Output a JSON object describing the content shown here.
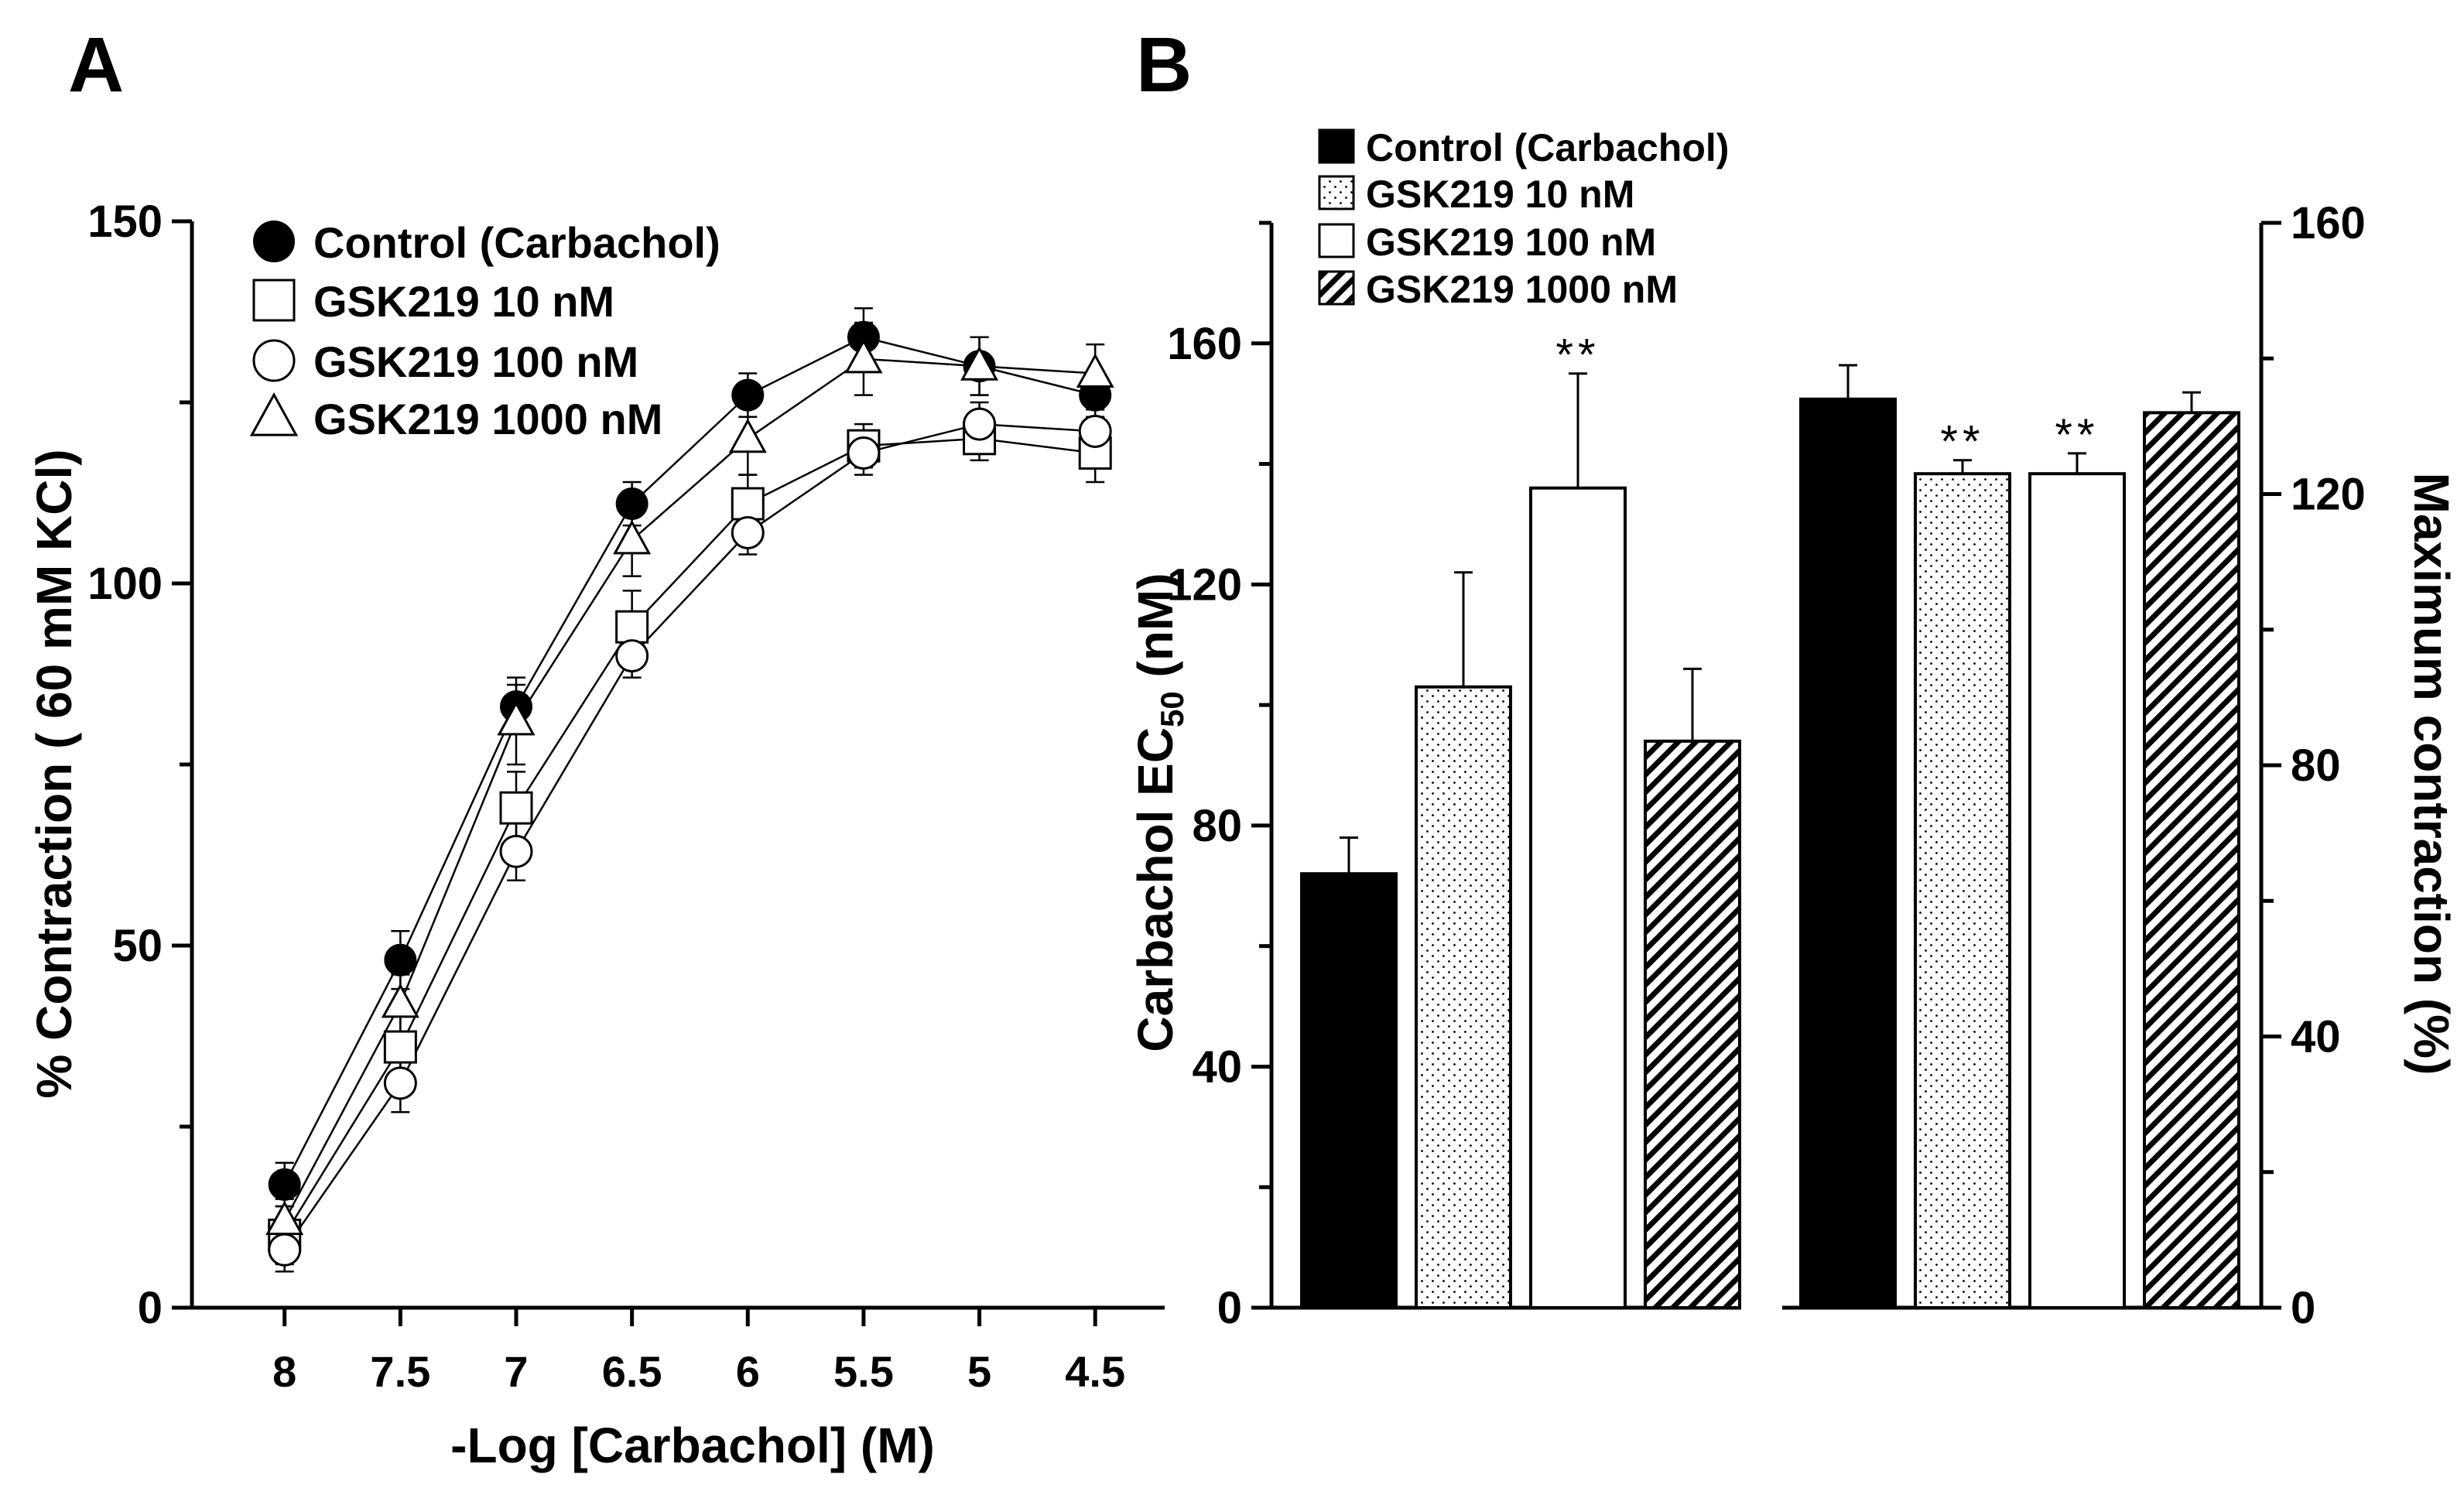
{
  "chart_data": [
    {
      "panel": "A",
      "type": "line",
      "xlabel": "-Log [Carbachol] (M)",
      "ylabel": "% Contraction ( 60 mM KCl)",
      "xlim": [
        8.4,
        4.2
      ],
      "ylim": [
        0,
        150
      ],
      "x": [
        8,
        7.5,
        7,
        6.5,
        6,
        5.5,
        5,
        4.5
      ],
      "x_tick_labels": [
        "8",
        "7.5",
        "7",
        "6.5",
        "6",
        "5.5",
        "5",
        "4.5"
      ],
      "y_ticks": [
        0,
        50,
        100,
        150
      ],
      "series": [
        {
          "name": "Control (Carbachol)",
          "marker": "filled-circle",
          "values": [
            17,
            48,
            83,
            111,
            126,
            134,
            130,
            126
          ],
          "errors": [
            3,
            4,
            3,
            3,
            3,
            4,
            4,
            3
          ]
        },
        {
          "name": "GSK219 10 nM",
          "marker": "open-square",
          "values": [
            10,
            36,
            69,
            94,
            111,
            119,
            120,
            118
          ],
          "errors": [
            4,
            5,
            5,
            5,
            4,
            3,
            3,
            4
          ]
        },
        {
          "name": "GSK219 100 nM",
          "marker": "open-circle",
          "values": [
            8,
            31,
            63,
            90,
            107,
            118,
            122,
            121
          ],
          "errors": [
            3,
            4,
            4,
            3,
            3,
            3,
            3,
            3
          ]
        },
        {
          "name": "GSK219 1000 nM",
          "marker": "open-triangle",
          "values": [
            12,
            42,
            81,
            106,
            120,
            131,
            130,
            129
          ],
          "errors": [
            3,
            4,
            6,
            5,
            5,
            5,
            4,
            4
          ]
        }
      ]
    },
    {
      "panel": "B",
      "type": "bar",
      "legend": [
        "Control (Carbachol)",
        "GSK219 10 nM",
        "GSK219 100 nM",
        "GSK219 1000 nM"
      ],
      "left": {
        "ylabel": "Carbachol EC",
        "ylabel_sub": "50",
        "ylabel_suffix": " (nM)",
        "ylim": [
          0,
          180
        ],
        "y_ticks": [
          0,
          40,
          80,
          120,
          160
        ],
        "values": [
          72,
          103,
          136,
          94
        ],
        "errors": [
          6,
          19,
          19,
          12
        ],
        "significance": [
          "",
          "",
          "**",
          ""
        ]
      },
      "right": {
        "ylabel": "Maximum contraction (%)",
        "ylim": [
          0,
          160
        ],
        "y_ticks": [
          0,
          40,
          80,
          120,
          160
        ],
        "values": [
          134,
          123,
          123,
          132
        ],
        "errors": [
          5,
          2,
          3,
          3
        ],
        "significance": [
          "",
          "**",
          "**",
          ""
        ]
      }
    }
  ],
  "panels": {
    "a_label": "A",
    "b_label": "B"
  }
}
